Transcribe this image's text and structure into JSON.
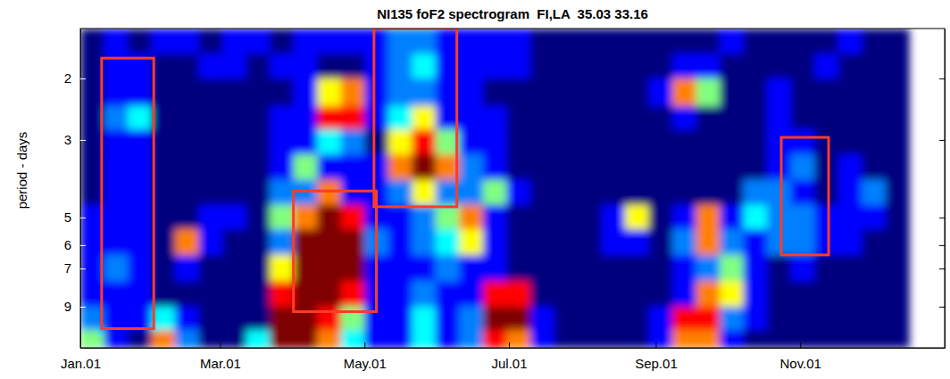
{
  "chart_data": {
    "type": "heatmap",
    "title": "NI135 foF2 spectrogram  FI,LA  35.03 33.16",
    "y_label": "period - days",
    "xlim": [
      0,
      365
    ],
    "xticks": [
      {
        "value": 0,
        "label": "Jan.01"
      },
      {
        "value": 59,
        "label": "Mar.01"
      },
      {
        "value": 120,
        "label": "May.01"
      },
      {
        "value": 181,
        "label": "Jul.01"
      },
      {
        "value": 243,
        "label": "Sep.01"
      },
      {
        "value": 304,
        "label": "Nov.01"
      }
    ],
    "ylim": [
      1.44,
      11.8
    ],
    "yticks": [
      2,
      3,
      5,
      6,
      7,
      9
    ],
    "log": "y",
    "x_edges": [
      0,
      10,
      20,
      30,
      40,
      50,
      60,
      70,
      80,
      90,
      100,
      110,
      120,
      130,
      140,
      150,
      160,
      170,
      180,
      190,
      200,
      210,
      220,
      230,
      240,
      250,
      260,
      270,
      280,
      290,
      300,
      310,
      320,
      330,
      340,
      350
    ],
    "y_edges": [
      1.44,
      1.7,
      2.0,
      2.4,
      2.8,
      3.3,
      3.9,
      4.6,
      5.4,
      6.4,
      7.6,
      9.0,
      10.5,
      11.8
    ],
    "z": [
      [
        2,
        3,
        2,
        3,
        3,
        2,
        3,
        3,
        2,
        3,
        3,
        3,
        3,
        4,
        4,
        3,
        3,
        3,
        3,
        2,
        2,
        2,
        2,
        2,
        2,
        2,
        2,
        3,
        2,
        2,
        2,
        2,
        3,
        2,
        2
      ],
      [
        2,
        3,
        3,
        2,
        2,
        3,
        3,
        2,
        3,
        3,
        2,
        2,
        3,
        4,
        5,
        3,
        3,
        3,
        3,
        2,
        2,
        2,
        2,
        2,
        2,
        3,
        3,
        2,
        2,
        2,
        2,
        3,
        2,
        2,
        2
      ],
      [
        2,
        3,
        3,
        2,
        2,
        2,
        2,
        2,
        2,
        3,
        7,
        8,
        3,
        4,
        4,
        3,
        3,
        2,
        2,
        2,
        2,
        2,
        2,
        2,
        3,
        8,
        6,
        2,
        2,
        3,
        2,
        2,
        2,
        2,
        2
      ],
      [
        2,
        4,
        5,
        2,
        2,
        2,
        2,
        2,
        3,
        3,
        9,
        9,
        3,
        5,
        7,
        3,
        3,
        3,
        2,
        2,
        2,
        2,
        2,
        2,
        2,
        3,
        2,
        2,
        2,
        3,
        2,
        2,
        2,
        2,
        2
      ],
      [
        2,
        3,
        3,
        2,
        2,
        2,
        2,
        2,
        3,
        3,
        5,
        4,
        2,
        7,
        9,
        6,
        3,
        3,
        2,
        2,
        2,
        2,
        2,
        2,
        2,
        2,
        2,
        2,
        2,
        3,
        3,
        2,
        2,
        2,
        2
      ],
      [
        2,
        3,
        3,
        2,
        2,
        2,
        2,
        2,
        3,
        6,
        3,
        3,
        3,
        8,
        10,
        8,
        4,
        3,
        2,
        2,
        2,
        2,
        2,
        2,
        2,
        2,
        2,
        2,
        2,
        3,
        4,
        2,
        3,
        2,
        2
      ],
      [
        2,
        3,
        3,
        2,
        2,
        2,
        2,
        2,
        4,
        4,
        8,
        3,
        3,
        4,
        7,
        4,
        4,
        6,
        3,
        2,
        2,
        2,
        2,
        2,
        2,
        2,
        2,
        2,
        4,
        4,
        3,
        2,
        3,
        4,
        2
      ],
      [
        3,
        3,
        3,
        2,
        2,
        3,
        3,
        2,
        6,
        8,
        10,
        9,
        3,
        3,
        4,
        6,
        8,
        3,
        2,
        2,
        2,
        2,
        3,
        7,
        2,
        3,
        8,
        3,
        5,
        4,
        4,
        3,
        3,
        3,
        2
      ],
      [
        3,
        3,
        3,
        2,
        8,
        3,
        2,
        2,
        4,
        10,
        10,
        10,
        4,
        3,
        4,
        5,
        7,
        3,
        2,
        2,
        2,
        2,
        3,
        3,
        2,
        4,
        8,
        4,
        3,
        4,
        4,
        3,
        3,
        2,
        2
      ],
      [
        3,
        4,
        3,
        2,
        3,
        2,
        2,
        2,
        7,
        10,
        10,
        10,
        3,
        3,
        3,
        4,
        3,
        3,
        2,
        2,
        2,
        2,
        2,
        2,
        2,
        3,
        4,
        6,
        3,
        2,
        3,
        2,
        2,
        2,
        2
      ],
      [
        3,
        3,
        3,
        2,
        2,
        2,
        2,
        2,
        9,
        10,
        10,
        9,
        3,
        3,
        4,
        3,
        3,
        9,
        9,
        2,
        2,
        2,
        2,
        2,
        2,
        3,
        8,
        7,
        3,
        2,
        2,
        2,
        2,
        2,
        2
      ],
      [
        4,
        3,
        3,
        5,
        3,
        2,
        2,
        2,
        10,
        10,
        9,
        6,
        3,
        3,
        5,
        3,
        4,
        10,
        10,
        3,
        2,
        2,
        2,
        2,
        3,
        9,
        9,
        4,
        3,
        2,
        2,
        2,
        2,
        2,
        2
      ],
      [
        6,
        3,
        2,
        8,
        4,
        2,
        2,
        5,
        10,
        10,
        8,
        5,
        3,
        3,
        5,
        3,
        4,
        9,
        8,
        3,
        2,
        2,
        2,
        2,
        3,
        8,
        8,
        3,
        2,
        2,
        2,
        2,
        2,
        2,
        2
      ]
    ],
    "boxes": [
      {
        "x": [
          9,
          31
        ],
        "y": [
          1.75,
          10.4
        ]
      },
      {
        "x": [
          124,
          159
        ],
        "y": [
          1.44,
          4.66
        ]
      },
      {
        "x": [
          90,
          125
        ],
        "y": [
          4.2,
          9.3
        ]
      },
      {
        "x": [
          296,
          316
        ],
        "y": [
          2.95,
          6.4
        ]
      }
    ]
  }
}
